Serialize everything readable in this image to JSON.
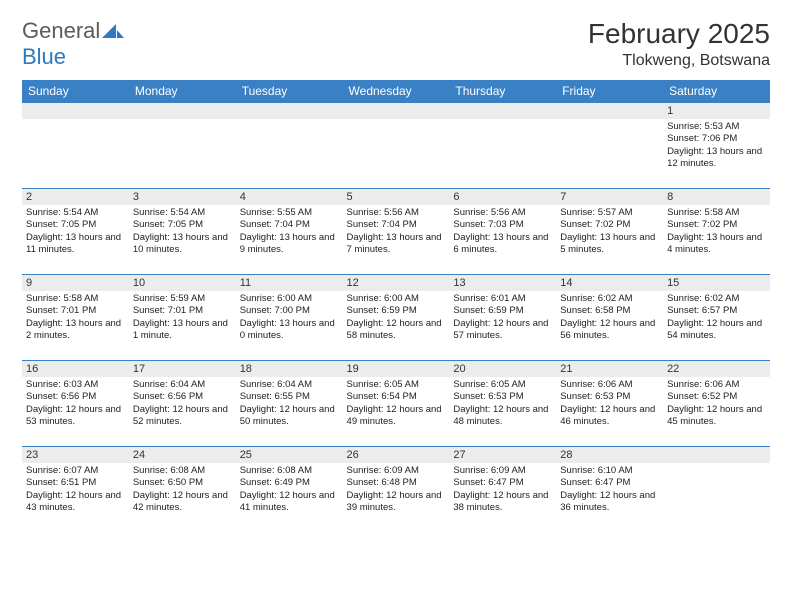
{
  "logo": {
    "text1": "General",
    "text2": "Blue"
  },
  "title": "February 2025",
  "location": "Tlokweng, Botswana",
  "colors": {
    "header_bg": "#3a80c4",
    "header_text": "#ffffff",
    "daynum_bg": "#ececec",
    "border": "#3a80c4",
    "logo_gray": "#5b5b5b",
    "logo_blue": "#2f79bf"
  },
  "daysOfWeek": [
    "Sunday",
    "Monday",
    "Tuesday",
    "Wednesday",
    "Thursday",
    "Friday",
    "Saturday"
  ],
  "weeks": [
    [
      {
        "n": "",
        "sr": "",
        "ss": "",
        "dl": ""
      },
      {
        "n": "",
        "sr": "",
        "ss": "",
        "dl": ""
      },
      {
        "n": "",
        "sr": "",
        "ss": "",
        "dl": ""
      },
      {
        "n": "",
        "sr": "",
        "ss": "",
        "dl": ""
      },
      {
        "n": "",
        "sr": "",
        "ss": "",
        "dl": ""
      },
      {
        "n": "",
        "sr": "",
        "ss": "",
        "dl": ""
      },
      {
        "n": "1",
        "sr": "Sunrise: 5:53 AM",
        "ss": "Sunset: 7:06 PM",
        "dl": "Daylight: 13 hours and 12 minutes."
      }
    ],
    [
      {
        "n": "2",
        "sr": "Sunrise: 5:54 AM",
        "ss": "Sunset: 7:05 PM",
        "dl": "Daylight: 13 hours and 11 minutes."
      },
      {
        "n": "3",
        "sr": "Sunrise: 5:54 AM",
        "ss": "Sunset: 7:05 PM",
        "dl": "Daylight: 13 hours and 10 minutes."
      },
      {
        "n": "4",
        "sr": "Sunrise: 5:55 AM",
        "ss": "Sunset: 7:04 PM",
        "dl": "Daylight: 13 hours and 9 minutes."
      },
      {
        "n": "5",
        "sr": "Sunrise: 5:56 AM",
        "ss": "Sunset: 7:04 PM",
        "dl": "Daylight: 13 hours and 7 minutes."
      },
      {
        "n": "6",
        "sr": "Sunrise: 5:56 AM",
        "ss": "Sunset: 7:03 PM",
        "dl": "Daylight: 13 hours and 6 minutes."
      },
      {
        "n": "7",
        "sr": "Sunrise: 5:57 AM",
        "ss": "Sunset: 7:02 PM",
        "dl": "Daylight: 13 hours and 5 minutes."
      },
      {
        "n": "8",
        "sr": "Sunrise: 5:58 AM",
        "ss": "Sunset: 7:02 PM",
        "dl": "Daylight: 13 hours and 4 minutes."
      }
    ],
    [
      {
        "n": "9",
        "sr": "Sunrise: 5:58 AM",
        "ss": "Sunset: 7:01 PM",
        "dl": "Daylight: 13 hours and 2 minutes."
      },
      {
        "n": "10",
        "sr": "Sunrise: 5:59 AM",
        "ss": "Sunset: 7:01 PM",
        "dl": "Daylight: 13 hours and 1 minute."
      },
      {
        "n": "11",
        "sr": "Sunrise: 6:00 AM",
        "ss": "Sunset: 7:00 PM",
        "dl": "Daylight: 13 hours and 0 minutes."
      },
      {
        "n": "12",
        "sr": "Sunrise: 6:00 AM",
        "ss": "Sunset: 6:59 PM",
        "dl": "Daylight: 12 hours and 58 minutes."
      },
      {
        "n": "13",
        "sr": "Sunrise: 6:01 AM",
        "ss": "Sunset: 6:59 PM",
        "dl": "Daylight: 12 hours and 57 minutes."
      },
      {
        "n": "14",
        "sr": "Sunrise: 6:02 AM",
        "ss": "Sunset: 6:58 PM",
        "dl": "Daylight: 12 hours and 56 minutes."
      },
      {
        "n": "15",
        "sr": "Sunrise: 6:02 AM",
        "ss": "Sunset: 6:57 PM",
        "dl": "Daylight: 12 hours and 54 minutes."
      }
    ],
    [
      {
        "n": "16",
        "sr": "Sunrise: 6:03 AM",
        "ss": "Sunset: 6:56 PM",
        "dl": "Daylight: 12 hours and 53 minutes."
      },
      {
        "n": "17",
        "sr": "Sunrise: 6:04 AM",
        "ss": "Sunset: 6:56 PM",
        "dl": "Daylight: 12 hours and 52 minutes."
      },
      {
        "n": "18",
        "sr": "Sunrise: 6:04 AM",
        "ss": "Sunset: 6:55 PM",
        "dl": "Daylight: 12 hours and 50 minutes."
      },
      {
        "n": "19",
        "sr": "Sunrise: 6:05 AM",
        "ss": "Sunset: 6:54 PM",
        "dl": "Daylight: 12 hours and 49 minutes."
      },
      {
        "n": "20",
        "sr": "Sunrise: 6:05 AM",
        "ss": "Sunset: 6:53 PM",
        "dl": "Daylight: 12 hours and 48 minutes."
      },
      {
        "n": "21",
        "sr": "Sunrise: 6:06 AM",
        "ss": "Sunset: 6:53 PM",
        "dl": "Daylight: 12 hours and 46 minutes."
      },
      {
        "n": "22",
        "sr": "Sunrise: 6:06 AM",
        "ss": "Sunset: 6:52 PM",
        "dl": "Daylight: 12 hours and 45 minutes."
      }
    ],
    [
      {
        "n": "23",
        "sr": "Sunrise: 6:07 AM",
        "ss": "Sunset: 6:51 PM",
        "dl": "Daylight: 12 hours and 43 minutes."
      },
      {
        "n": "24",
        "sr": "Sunrise: 6:08 AM",
        "ss": "Sunset: 6:50 PM",
        "dl": "Daylight: 12 hours and 42 minutes."
      },
      {
        "n": "25",
        "sr": "Sunrise: 6:08 AM",
        "ss": "Sunset: 6:49 PM",
        "dl": "Daylight: 12 hours and 41 minutes."
      },
      {
        "n": "26",
        "sr": "Sunrise: 6:09 AM",
        "ss": "Sunset: 6:48 PM",
        "dl": "Daylight: 12 hours and 39 minutes."
      },
      {
        "n": "27",
        "sr": "Sunrise: 6:09 AM",
        "ss": "Sunset: 6:47 PM",
        "dl": "Daylight: 12 hours and 38 minutes."
      },
      {
        "n": "28",
        "sr": "Sunrise: 6:10 AM",
        "ss": "Sunset: 6:47 PM",
        "dl": "Daylight: 12 hours and 36 minutes."
      },
      {
        "n": "",
        "sr": "",
        "ss": "",
        "dl": ""
      }
    ]
  ]
}
